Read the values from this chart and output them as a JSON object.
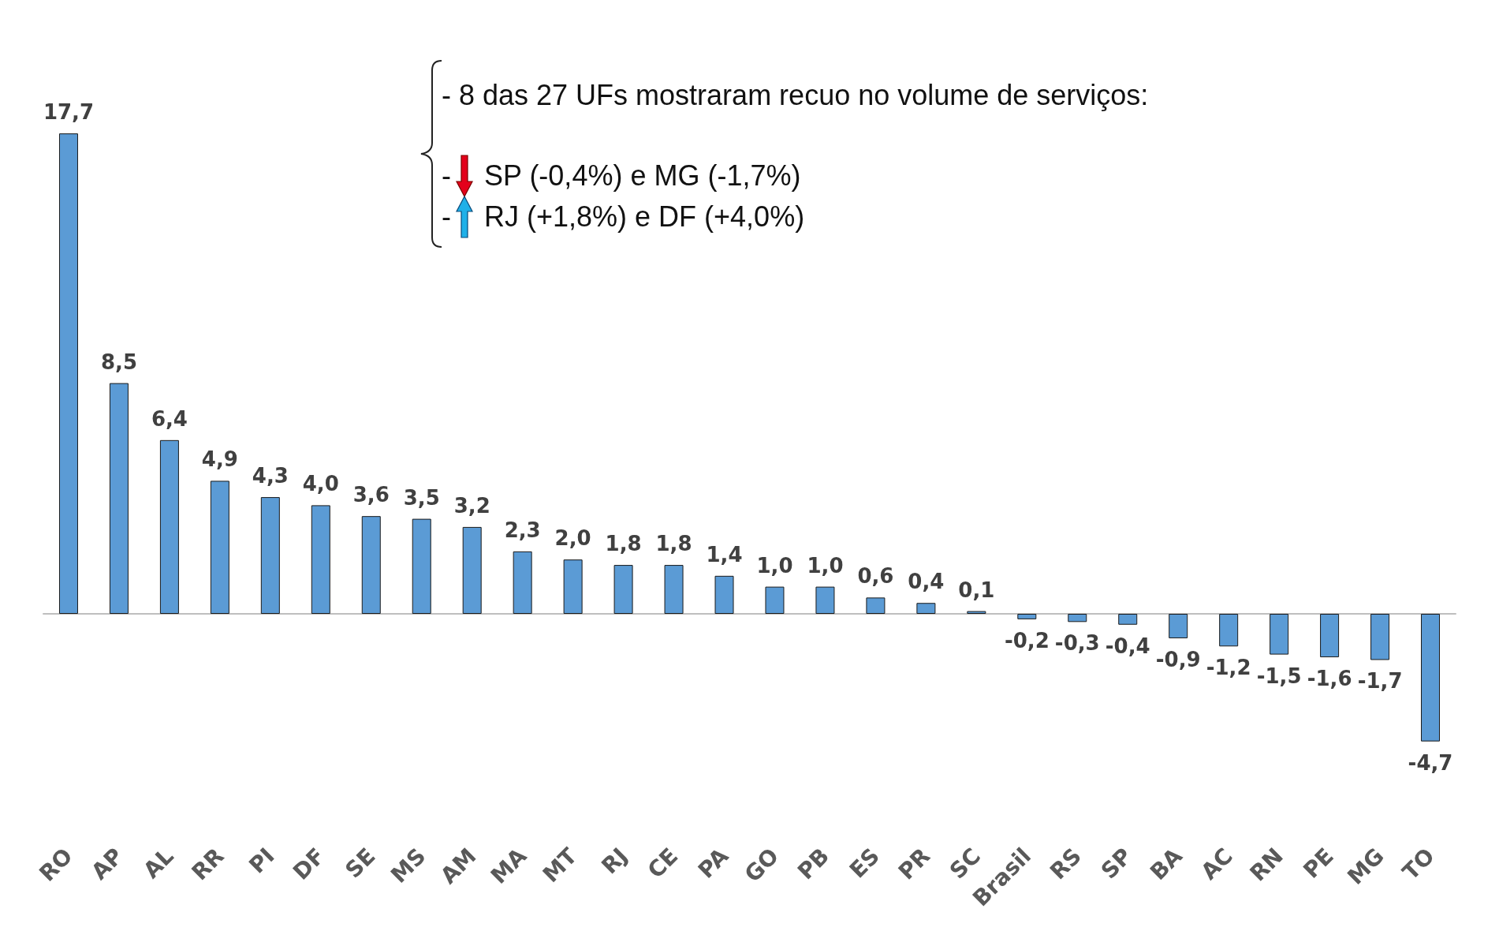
{
  "chart_data": {
    "type": "bar",
    "categories": [
      "RO",
      "AP",
      "AL",
      "RR",
      "PI",
      "DF",
      "SE",
      "MS",
      "AM",
      "MA",
      "MT",
      "RJ",
      "CE",
      "PA",
      "GO",
      "PB",
      "ES",
      "PR",
      "SC",
      "Brasil",
      "RS",
      "SP",
      "BA",
      "AC",
      "RN",
      "PE",
      "MG",
      "TO"
    ],
    "values": [
      17.7,
      8.5,
      6.4,
      4.9,
      4.3,
      4.0,
      3.6,
      3.5,
      3.2,
      2.3,
      2.0,
      1.8,
      1.8,
      1.4,
      1.0,
      1.0,
      0.6,
      0.4,
      0.1,
      -0.2,
      -0.3,
      -0.4,
      -0.9,
      -1.2,
      -1.5,
      -1.6,
      -1.7,
      -4.7
    ],
    "value_labels": [
      "17,7",
      "8,5",
      "6,4",
      "4,9",
      "4,3",
      "4,0",
      "3,6",
      "3,5",
      "3,2",
      "2,3",
      "2,0",
      "1,8",
      "1,8",
      "1,4",
      "1,0",
      "1,0",
      "0,6",
      "0,4",
      "0,1",
      "-0,2",
      "-0,3",
      "-0,4",
      "-0,9",
      "-1,2",
      "-1,5",
      "-1,6",
      "-1,7",
      "-4,7"
    ],
    "color": "#5b9bd5",
    "annotations": [
      "- 8 das 27 UFs mostraram recuo no volume de serviços:",
      "- SP (-0,4%) e MG (-1,7%)",
      "- RJ (+1,8%) e DF (+4,0%)"
    ],
    "grid": false
  }
}
